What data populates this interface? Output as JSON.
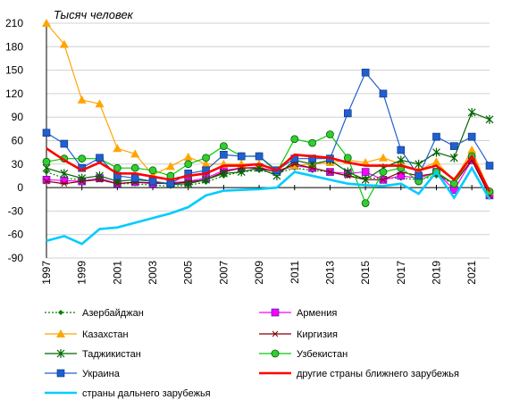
{
  "chart_data": {
    "type": "line",
    "unit_label": "Тысяч человек",
    "x": [
      1997,
      1998,
      1999,
      2000,
      2001,
      2002,
      2003,
      2004,
      2005,
      2006,
      2007,
      2008,
      2009,
      2010,
      2011,
      2012,
      2013,
      2014,
      2015,
      2016,
      2017,
      2018,
      2019,
      2020,
      2021,
      2022
    ],
    "x_ticks": [
      "1997",
      "1999",
      "2001",
      "2003",
      "2005",
      "2007",
      "2009",
      "2011",
      "2013",
      "2015",
      "2017",
      "2019",
      "2021"
    ],
    "ylim": [
      -90,
      210
    ],
    "y_ticks": [
      "210",
      "180",
      "150",
      "120",
      "90",
      "60",
      "30",
      "0",
      "-30",
      "-60",
      "-90"
    ],
    "grid": "horizontal",
    "legend_position": "bottom",
    "series": [
      {
        "name": "Азербайджан",
        "color": "#008000",
        "style": "dotted",
        "marker": "diamond",
        "values": [
          20,
          12,
          10,
          10,
          5,
          5,
          3,
          2,
          3,
          7,
          15,
          20,
          22,
          18,
          25,
          22,
          20,
          15,
          12,
          12,
          12,
          10,
          15,
          5,
          42,
          -12
        ]
      },
      {
        "name": "Армения",
        "color": "#ff00ff",
        "style": "solid",
        "marker": "square",
        "values": [
          10,
          9,
          8,
          12,
          5,
          7,
          5,
          6,
          8,
          12,
          22,
          25,
          26,
          20,
          28,
          25,
          20,
          18,
          20,
          10,
          15,
          12,
          20,
          -3,
          35,
          -10
        ]
      },
      {
        "name": "Казахстан",
        "color": "#ffa500",
        "style": "solid",
        "marker": "triangle",
        "values": [
          210,
          183,
          112,
          107,
          50,
          43,
          16,
          27,
          39,
          30,
          30,
          30,
          30,
          22,
          28,
          30,
          32,
          35,
          32,
          38,
          30,
          22,
          33,
          8,
          48,
          -5
        ]
      },
      {
        "name": "Киргизия",
        "color": "#800000",
        "style": "solid",
        "marker": "x",
        "values": [
          8,
          5,
          8,
          10,
          5,
          7,
          6,
          5,
          7,
          10,
          20,
          25,
          25,
          20,
          30,
          25,
          20,
          15,
          10,
          10,
          20,
          15,
          18,
          5,
          35,
          -10
        ]
      },
      {
        "name": "Таджикистан",
        "color": "#006400",
        "style": "solid",
        "marker": "star",
        "values": [
          25,
          18,
          12,
          15,
          8,
          10,
          8,
          4,
          5,
          10,
          18,
          20,
          25,
          15,
          35,
          30,
          35,
          20,
          10,
          25,
          35,
          30,
          45,
          38,
          96,
          87
        ]
      },
      {
        "name": "Узбекистан",
        "color": "#00cc00",
        "style": "solid",
        "marker": "circle",
        "values": [
          33,
          37,
          37,
          37,
          25,
          25,
          22,
          15,
          30,
          38,
          53,
          40,
          40,
          20,
          62,
          57,
          68,
          38,
          -20,
          20,
          25,
          8,
          20,
          5,
          40,
          -5
        ]
      },
      {
        "name": "Украина",
        "color": "#1f5fd0",
        "style": "solid",
        "marker": "square",
        "values": [
          70,
          56,
          25,
          38,
          15,
          12,
          8,
          5,
          18,
          22,
          42,
          40,
          40,
          22,
          37,
          37,
          37,
          95,
          147,
          120,
          48,
          15,
          65,
          53,
          65,
          28
        ]
      },
      {
        "name": "другие страны ближнего зарубежья",
        "color": "#ff0000",
        "style": "thick",
        "marker": "none",
        "values": [
          50,
          35,
          22,
          32,
          18,
          18,
          14,
          10,
          15,
          18,
          28,
          28,
          30,
          22,
          42,
          40,
          38,
          32,
          28,
          28,
          28,
          22,
          28,
          10,
          40,
          -5
        ]
      },
      {
        "name": "страны дальнего зарубежья",
        "color": "#00ccff",
        "style": "thick",
        "marker": "none",
        "values": [
          -68,
          -62,
          -72,
          -53,
          -51,
          -45,
          -39,
          -33,
          -25,
          -10,
          -4,
          -3,
          -2,
          0,
          20,
          15,
          10,
          5,
          3,
          2,
          5,
          -8,
          20,
          -13,
          25,
          -15
        ]
      }
    ]
  }
}
